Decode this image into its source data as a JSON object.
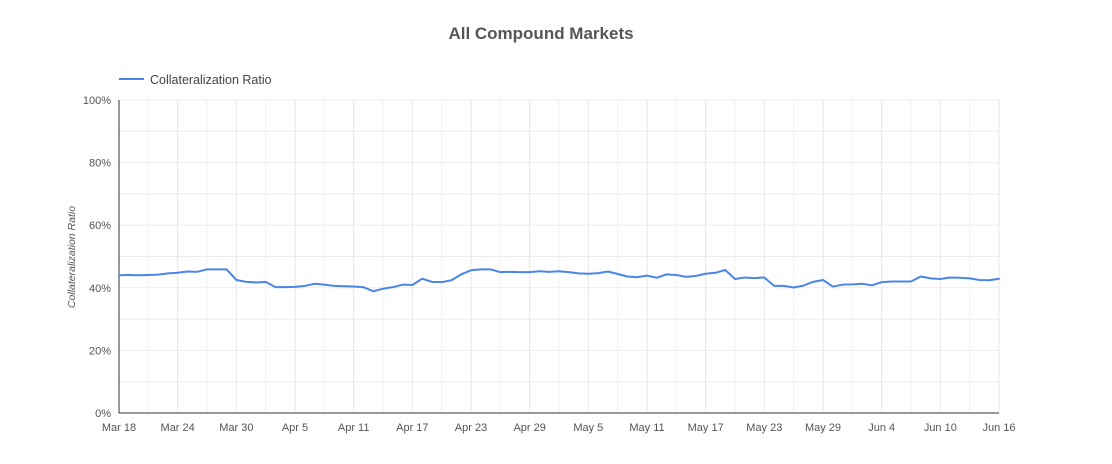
{
  "chart_data": {
    "type": "line",
    "title": "All Compound Markets",
    "xlabel": "",
    "ylabel": "Collateralization Ratio",
    "legend_position": "top-left",
    "grid": true,
    "ylim": [
      0,
      100
    ],
    "y_ticks": [
      "0%",
      "20%",
      "40%",
      "60%",
      "80%",
      "100%"
    ],
    "y_tick_values": [
      0,
      20,
      40,
      60,
      80,
      100
    ],
    "x_ticks": [
      "Mar 18",
      "Mar 24",
      "Mar 30",
      "Apr 5",
      "Apr 11",
      "Apr 17",
      "Apr 23",
      "Apr 29",
      "May 5",
      "May 11",
      "May 17",
      "May 23",
      "May 29",
      "Jun 4",
      "Jun 10",
      "Jun 16"
    ],
    "x_tick_day_step": 6,
    "series": [
      {
        "name": "Collateralization Ratio",
        "color": "#4a86e8",
        "values": [
          44.0,
          44.1,
          44.0,
          44.1,
          44.2,
          44.6,
          44.8,
          45.2,
          45.1,
          45.9,
          45.9,
          45.9,
          42.5,
          41.9,
          41.7,
          41.9,
          40.2,
          40.2,
          40.3,
          40.6,
          41.3,
          41.0,
          40.6,
          40.5,
          40.4,
          40.2,
          38.9,
          39.7,
          40.2,
          41.0,
          40.9,
          42.9,
          41.9,
          41.8,
          42.4,
          44.3,
          45.6,
          45.9,
          45.9,
          45.0,
          45.1,
          45.0,
          45.0,
          45.3,
          45.1,
          45.3,
          45.0,
          44.6,
          44.5,
          44.7,
          45.2,
          44.4,
          43.6,
          43.4,
          43.9,
          43.2,
          44.3,
          44.1,
          43.5,
          43.8,
          44.5,
          44.8,
          45.7,
          42.8,
          43.3,
          43.1,
          43.3,
          40.6,
          40.6,
          40.1,
          40.7,
          41.9,
          42.5,
          40.4,
          41.0,
          41.1,
          41.3,
          40.8,
          41.8,
          42.0,
          42.0,
          42.0,
          43.6,
          43.0,
          42.8,
          43.3,
          43.2,
          43.0,
          42.5,
          42.4,
          42.9
        ]
      }
    ]
  }
}
